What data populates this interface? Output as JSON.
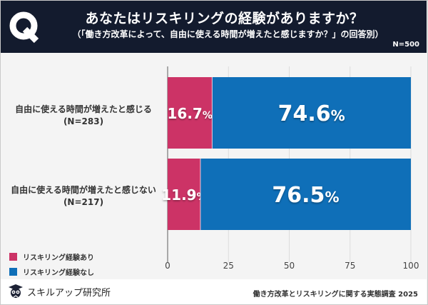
{
  "header": {
    "q_label": "Q",
    "title": "あなたはリスキリングの経験がありますか？",
    "subtitle": "（「働き方改革によって、自由に使える時間が増えたと感じますか？」の回答別）",
    "n_total": "N=500"
  },
  "colors": {
    "header_bg": "#131b2e",
    "series_yes": "#cc3366",
    "series_no": "#0f6fb8",
    "plot_bg": "#f4f4f4"
  },
  "chart_data": {
    "type": "bar",
    "orientation": "horizontal",
    "stacked": true,
    "title": "あなたはリスキリングの経験がありますか？",
    "categories": [
      {
        "label": "自由に使える時間が増えたと感じる",
        "n": "(N=283)"
      },
      {
        "label": "自由に使える時間が増えたと感じない",
        "n": "(N=217)"
      }
    ],
    "series": [
      {
        "name": "リスキリング経験あり",
        "values": [
          16.7,
          11.9
        ],
        "labels": [
          "16.7",
          "11.9"
        ]
      },
      {
        "name": "リスキリング経験なし",
        "values": [
          74.6,
          76.5
        ],
        "labels": [
          "74.6",
          "76.5"
        ]
      }
    ],
    "value_suffix": "%",
    "xlim": [
      0,
      100
    ],
    "xticks": [
      "0",
      "25",
      "50",
      "75",
      "100"
    ],
    "grid": true,
    "legend": "bottom-left"
  },
  "footer": {
    "brand": "スキルアップ研究所",
    "source": "働き方改革とリスキリングに関する実態調査 2025"
  }
}
